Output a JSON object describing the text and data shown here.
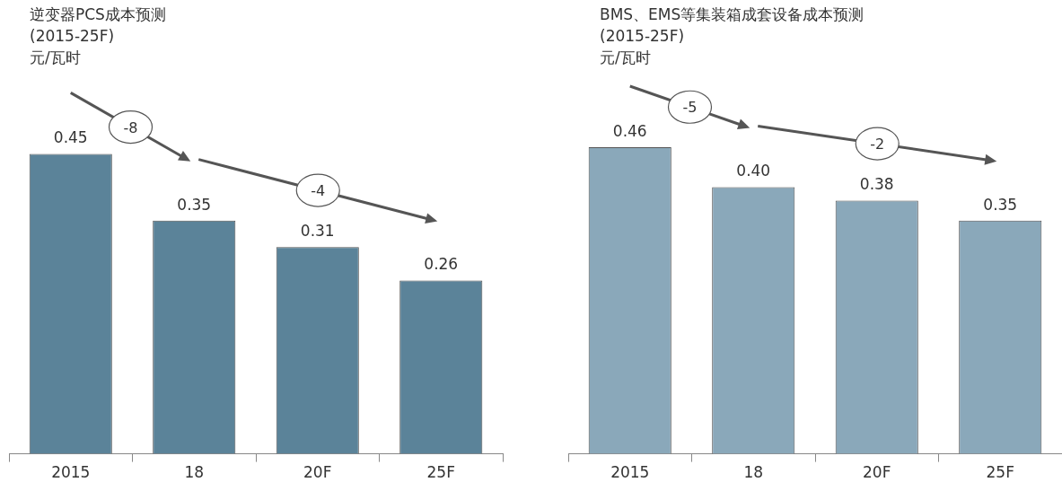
{
  "chart_data": [
    {
      "type": "bar",
      "title": "逆变器PCS成本预测",
      "subtitle": "(2015-25F)",
      "ylabel": "元/瓦时",
      "categories": [
        "2015",
        "18",
        "20F",
        "25F"
      ],
      "values": [
        0.45,
        0.35,
        0.31,
        0.26
      ],
      "value_labels": [
        "0.45",
        "0.35",
        "0.31",
        "0.26"
      ],
      "color": "#5b8399",
      "grid": false,
      "legend": false,
      "tick_labels": "x",
      "annotations": [
        "-8",
        "-4"
      ]
    },
    {
      "type": "bar",
      "title": "BMS、EMS等集装箱成套设备成本预测",
      "subtitle": "(2015-25F)",
      "ylabel": "元/瓦时",
      "categories": [
        "2015",
        "18",
        "20F",
        "25F"
      ],
      "values": [
        0.46,
        0.4,
        0.38,
        0.35
      ],
      "value_labels": [
        "0.46",
        "0.40",
        "0.38",
        "0.35"
      ],
      "color": "#8aa8ba",
      "grid": false,
      "legend": false,
      "tick_labels": "x",
      "annotations": [
        "-5",
        "-2"
      ]
    }
  ]
}
